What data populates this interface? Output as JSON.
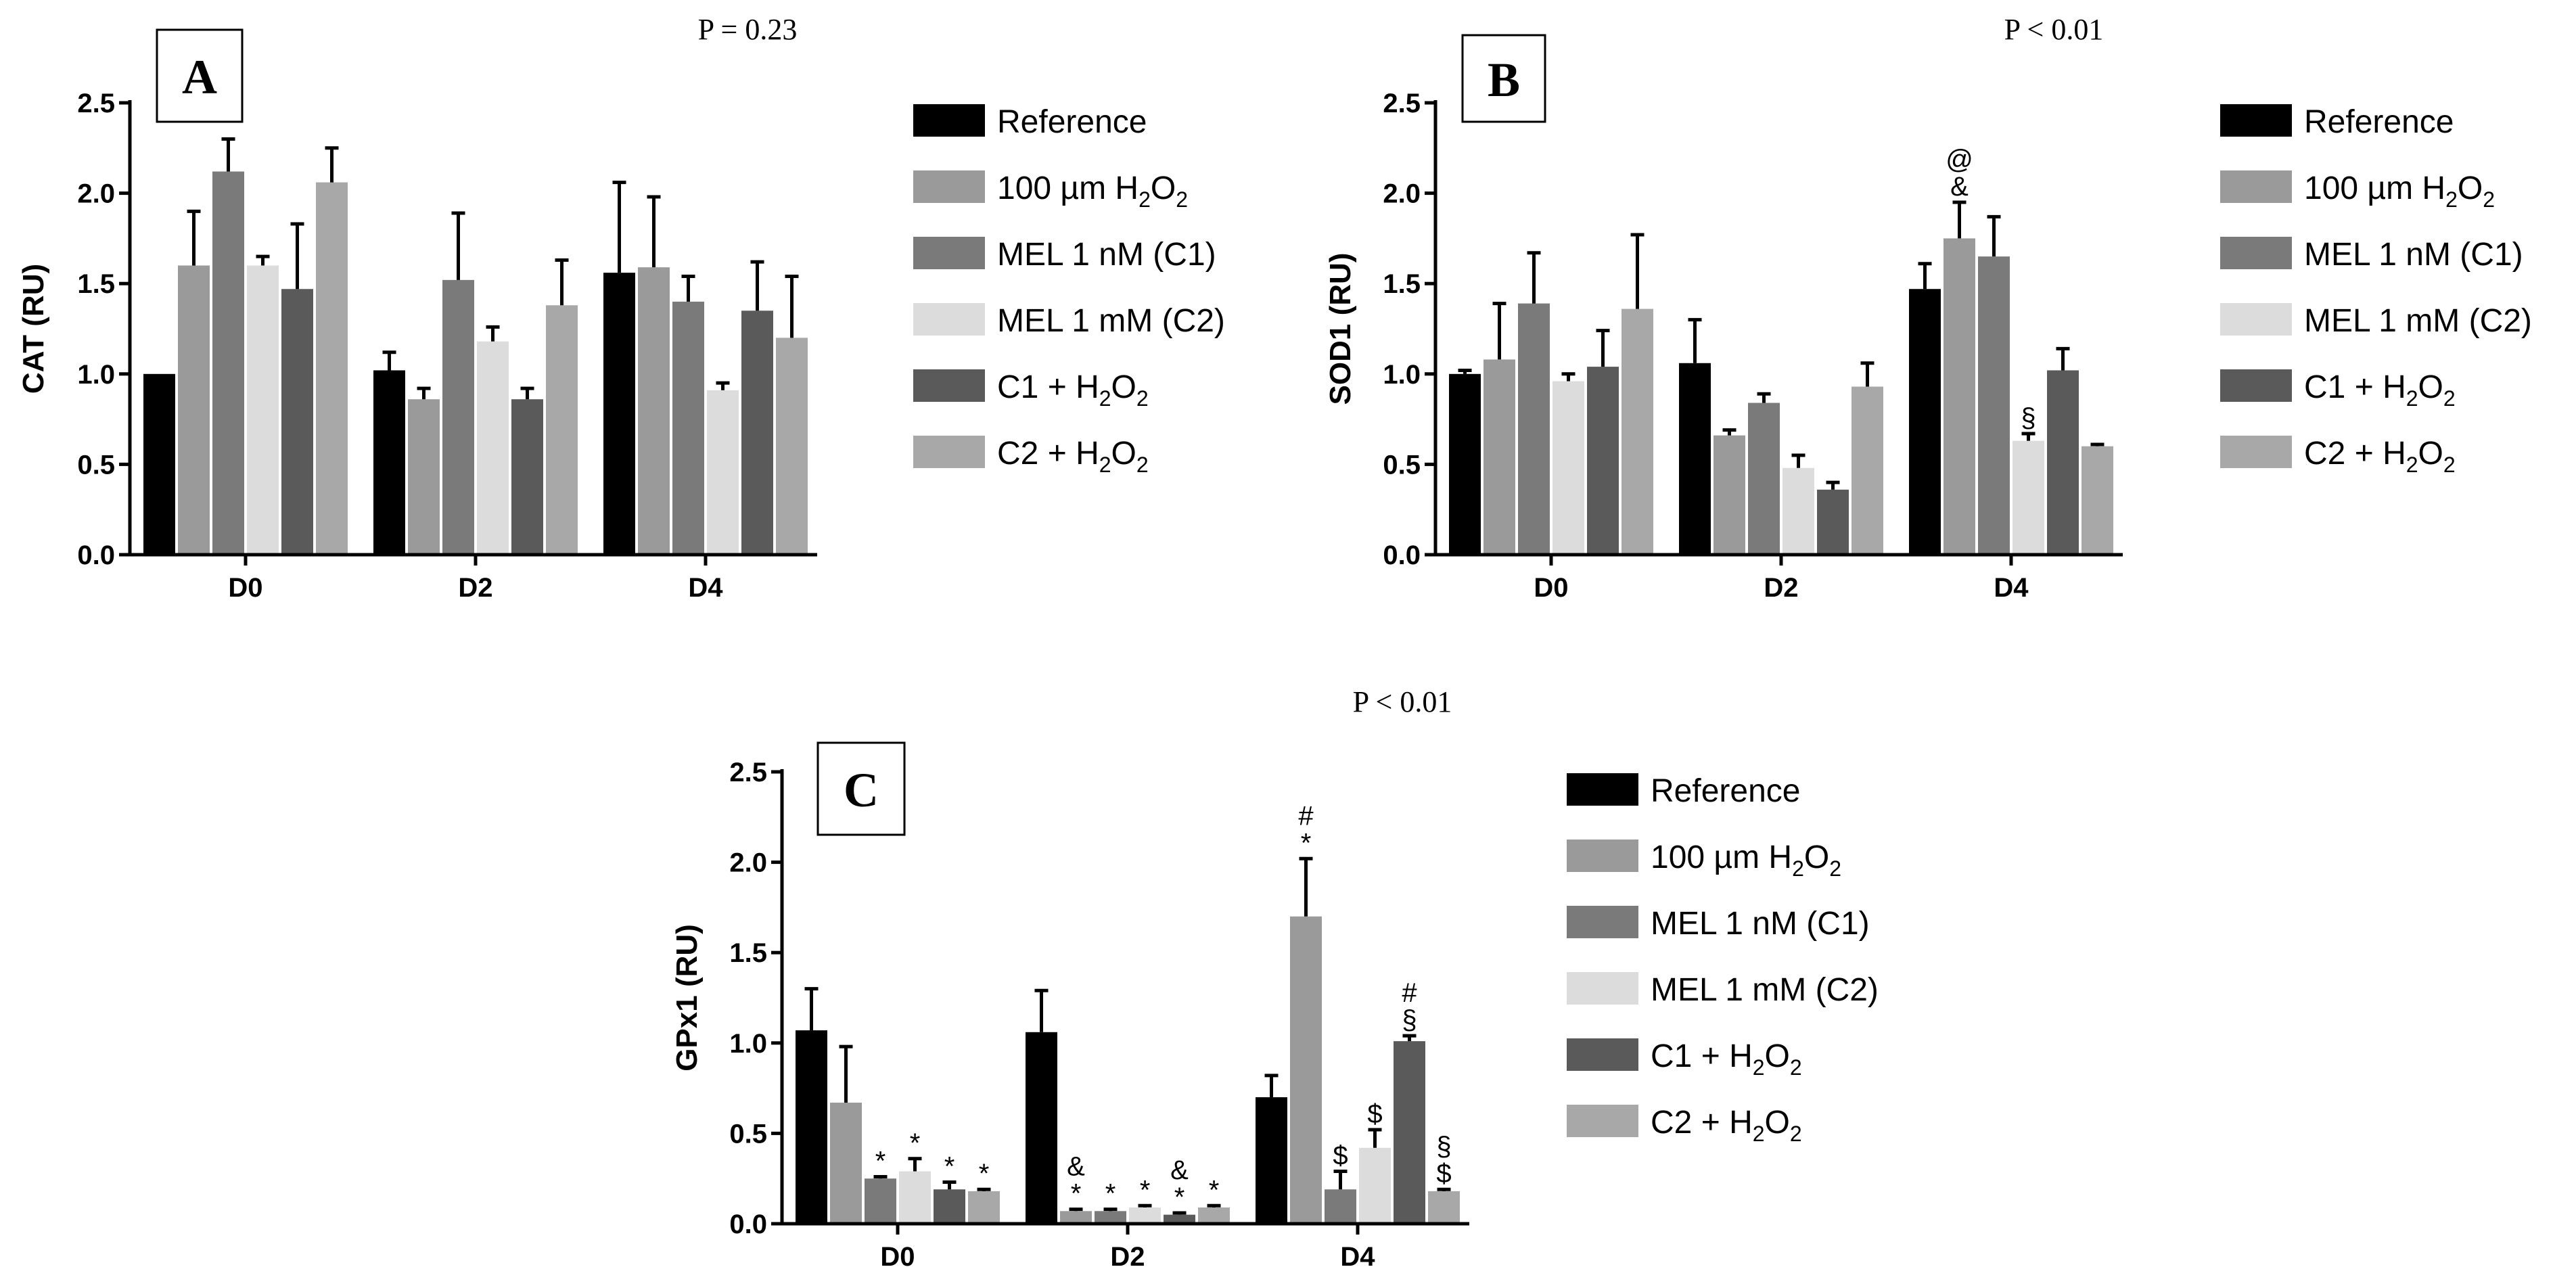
{
  "colors": {
    "Reference": "#000000",
    "100 µm H2O2": "#9a9a9a",
    "MEL 1 nM (C1)": "#7a7a7a",
    "MEL 1 mM (C2)": "#dcdcdc",
    "C1 + H2O2": "#5a5a5a",
    "C2 + H2O2": "#a8a8a8"
  },
  "legend_entries": [
    {
      "key": "Reference",
      "base": "Reference",
      "unit": "",
      "sub1": "",
      "mid": "",
      "sub2": ""
    },
    {
      "key": "100 µm H2O2",
      "base": "100 ",
      "unit": "µm",
      "sub1": " H",
      "mid": "O",
      "sub2": "2"
    },
    {
      "key": "MEL 1 nM (C1)",
      "base": "MEL 1 nM (C1)",
      "unit": "",
      "sub1": "",
      "mid": "",
      "sub2": ""
    },
    {
      "key": "MEL 1 mM (C2)",
      "base": "MEL 1 mM (C2)",
      "unit": "",
      "sub1": "",
      "mid": "",
      "sub2": ""
    },
    {
      "key": "C1 + H2O2",
      "base": "C1 + H",
      "unit": "",
      "sub1": "",
      "mid": "O",
      "sub2": "2"
    },
    {
      "key": "C2 + H2O2",
      "base": "C2 + H",
      "unit": "",
      "sub1": "",
      "mid": "O",
      "sub2": "2"
    }
  ],
  "chart_data": [
    {
      "type": "bar",
      "panel": "A",
      "title": "P = 0.23",
      "ylabel": "CAT (RU)",
      "ylim": [
        0,
        2.5
      ],
      "yticks": [
        "0.0",
        "0.5",
        "1.0",
        "1.5",
        "2.0",
        "2.5"
      ],
      "categories": [
        "D0",
        "D2",
        "D4"
      ],
      "series": [
        {
          "name": "Reference",
          "values": [
            1.0,
            1.02,
            1.56
          ],
          "errors": [
            0,
            0.1,
            0.5
          ]
        },
        {
          "name": "100 µm H2O2",
          "values": [
            1.6,
            0.86,
            1.59
          ],
          "errors": [
            0.3,
            0.06,
            0.39
          ]
        },
        {
          "name": "MEL 1 nM (C1)",
          "values": [
            2.12,
            1.52,
            1.4
          ],
          "errors": [
            0.18,
            0.37,
            0.14
          ]
        },
        {
          "name": "MEL 1 mM (C2)",
          "values": [
            1.6,
            1.18,
            0.91
          ],
          "errors": [
            0.05,
            0.08,
            0.04
          ]
        },
        {
          "name": "C1 + H2O2",
          "values": [
            1.47,
            0.86,
            1.35
          ],
          "errors": [
            0.36,
            0.06,
            0.27
          ]
        },
        {
          "name": "C2 + H2O2",
          "values": [
            2.06,
            1.38,
            1.2
          ],
          "errors": [
            0.19,
            0.25,
            0.34
          ]
        }
      ],
      "annotations": []
    },
    {
      "type": "bar",
      "panel": "B",
      "title": "P < 0.01",
      "ylabel": "SOD1 (RU)",
      "ylim": [
        0,
        2.5
      ],
      "yticks": [
        "0.0",
        "0.5",
        "1.0",
        "1.5",
        "2.0",
        "2.5"
      ],
      "categories": [
        "D0",
        "D2",
        "D4"
      ],
      "series": [
        {
          "name": "Reference",
          "values": [
            1.0,
            1.06,
            1.47
          ],
          "errors": [
            0.02,
            0.24,
            0.14
          ]
        },
        {
          "name": "100 µm H2O2",
          "values": [
            1.08,
            0.66,
            1.75
          ],
          "errors": [
            0.31,
            0.03,
            0.2
          ]
        },
        {
          "name": "MEL 1 nM (C1)",
          "values": [
            1.39,
            0.84,
            1.65
          ],
          "errors": [
            0.28,
            0.05,
            0.22
          ]
        },
        {
          "name": "MEL 1 mM (C2)",
          "values": [
            0.96,
            0.48,
            0.63
          ],
          "errors": [
            0.04,
            0.07,
            0.04
          ]
        },
        {
          "name": "C1 + H2O2",
          "values": [
            1.04,
            0.36,
            1.02
          ],
          "errors": [
            0.2,
            0.04,
            0.12
          ]
        },
        {
          "name": "C2 + H2O2",
          "values": [
            1.36,
            0.93,
            0.6
          ],
          "errors": [
            0.41,
            0.13,
            0.01
          ]
        }
      ],
      "annotations": [
        {
          "category": 2,
          "series": 1,
          "lines": [
            "@",
            "&"
          ]
        },
        {
          "category": 2,
          "series": 3,
          "lines": [
            "§"
          ]
        }
      ]
    },
    {
      "type": "bar",
      "panel": "C",
      "title": "P < 0.01",
      "ylabel": "GPx1 (RU)",
      "ylim": [
        0,
        2.5
      ],
      "yticks": [
        "0.0",
        "0.5",
        "1.0",
        "1.5",
        "2.0",
        "2.5"
      ],
      "categories": [
        "D0",
        "D2",
        "D4"
      ],
      "series": [
        {
          "name": "Reference",
          "values": [
            1.07,
            1.06,
            0.7
          ],
          "errors": [
            0.23,
            0.23,
            0.12
          ]
        },
        {
          "name": "100 µm H2O2",
          "values": [
            0.67,
            0.07,
            1.7
          ],
          "errors": [
            0.31,
            0.01,
            0.32
          ]
        },
        {
          "name": "MEL 1 nM (C1)",
          "values": [
            0.25,
            0.07,
            0.19
          ],
          "errors": [
            0.01,
            0.01,
            0.1
          ]
        },
        {
          "name": "MEL 1 mM (C2)",
          "values": [
            0.29,
            0.09,
            0.42
          ],
          "errors": [
            0.07,
            0.01,
            0.1
          ]
        },
        {
          "name": "C1 + H2O2",
          "values": [
            0.19,
            0.05,
            1.01
          ],
          "errors": [
            0.04,
            0.01,
            0.03
          ]
        },
        {
          "name": "C2 + H2O2",
          "values": [
            0.18,
            0.09,
            0.18
          ],
          "errors": [
            0.01,
            0.01,
            0.01
          ]
        }
      ],
      "annotations": [
        {
          "category": 0,
          "series": 2,
          "lines": [
            "*"
          ]
        },
        {
          "category": 0,
          "series": 3,
          "lines": [
            "*"
          ]
        },
        {
          "category": 0,
          "series": 4,
          "lines": [
            "*"
          ]
        },
        {
          "category": 0,
          "series": 5,
          "lines": [
            "*"
          ]
        },
        {
          "category": 1,
          "series": 1,
          "lines": [
            "&",
            "*"
          ]
        },
        {
          "category": 1,
          "series": 2,
          "lines": [
            "*"
          ]
        },
        {
          "category": 1,
          "series": 3,
          "lines": [
            "*"
          ]
        },
        {
          "category": 1,
          "series": 4,
          "lines": [
            "&",
            "*"
          ]
        },
        {
          "category": 1,
          "series": 5,
          "lines": [
            "*"
          ]
        },
        {
          "category": 2,
          "series": 1,
          "lines": [
            "#",
            "*"
          ]
        },
        {
          "category": 2,
          "series": 2,
          "lines": [
            "$"
          ]
        },
        {
          "category": 2,
          "series": 3,
          "lines": [
            "$"
          ]
        },
        {
          "category": 2,
          "series": 4,
          "lines": [
            "#",
            "§"
          ]
        },
        {
          "category": 2,
          "series": 5,
          "lines": [
            "§",
            "$"
          ]
        }
      ]
    }
  ]
}
